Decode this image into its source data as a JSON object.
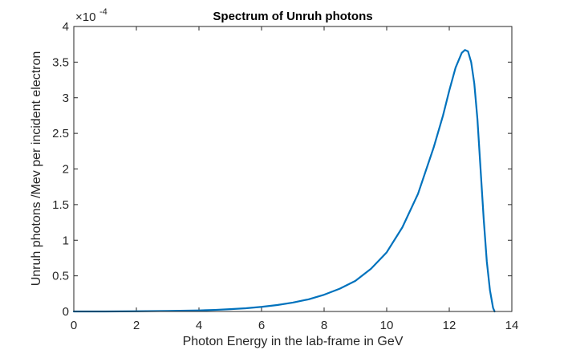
{
  "chart_data": {
    "type": "line",
    "title": "Spectrum of Unruh photons",
    "xlabel": "Photon Energy in the lab-frame in GeV",
    "ylabel": "Unruh photons /Mev per incident electron",
    "y_multiplier": {
      "base": "×10",
      "exponent": "-4"
    },
    "xlim": [
      0,
      14
    ],
    "ylim": [
      0,
      4
    ],
    "x_ticks": [
      "0",
      "2",
      "4",
      "6",
      "8",
      "10",
      "12",
      "14"
    ],
    "y_ticks": [
      "0",
      "0.5",
      "1",
      "1.5",
      "2",
      "2.5",
      "3",
      "3.5",
      "4"
    ],
    "grid": false,
    "series": [
      {
        "color": "#0072BD",
        "x": [
          0,
          1,
          2,
          3,
          4,
          4.5,
          5,
          5.5,
          6,
          6.5,
          7,
          7.5,
          8,
          8.5,
          9,
          9.5,
          10,
          10.5,
          11,
          11.5,
          11.8,
          12,
          12.2,
          12.4,
          12.5,
          12.6,
          12.7,
          12.8,
          12.9,
          13.0,
          13.1,
          13.2,
          13.3,
          13.4,
          13.45
        ],
        "y": [
          0,
          0,
          0.003,
          0.008,
          0.015,
          0.022,
          0.032,
          0.045,
          0.065,
          0.09,
          0.125,
          0.17,
          0.235,
          0.32,
          0.43,
          0.6,
          0.83,
          1.18,
          1.65,
          2.3,
          2.75,
          3.1,
          3.42,
          3.63,
          3.67,
          3.65,
          3.5,
          3.2,
          2.7,
          2.0,
          1.3,
          0.7,
          0.3,
          0.05,
          0
        ]
      }
    ]
  }
}
